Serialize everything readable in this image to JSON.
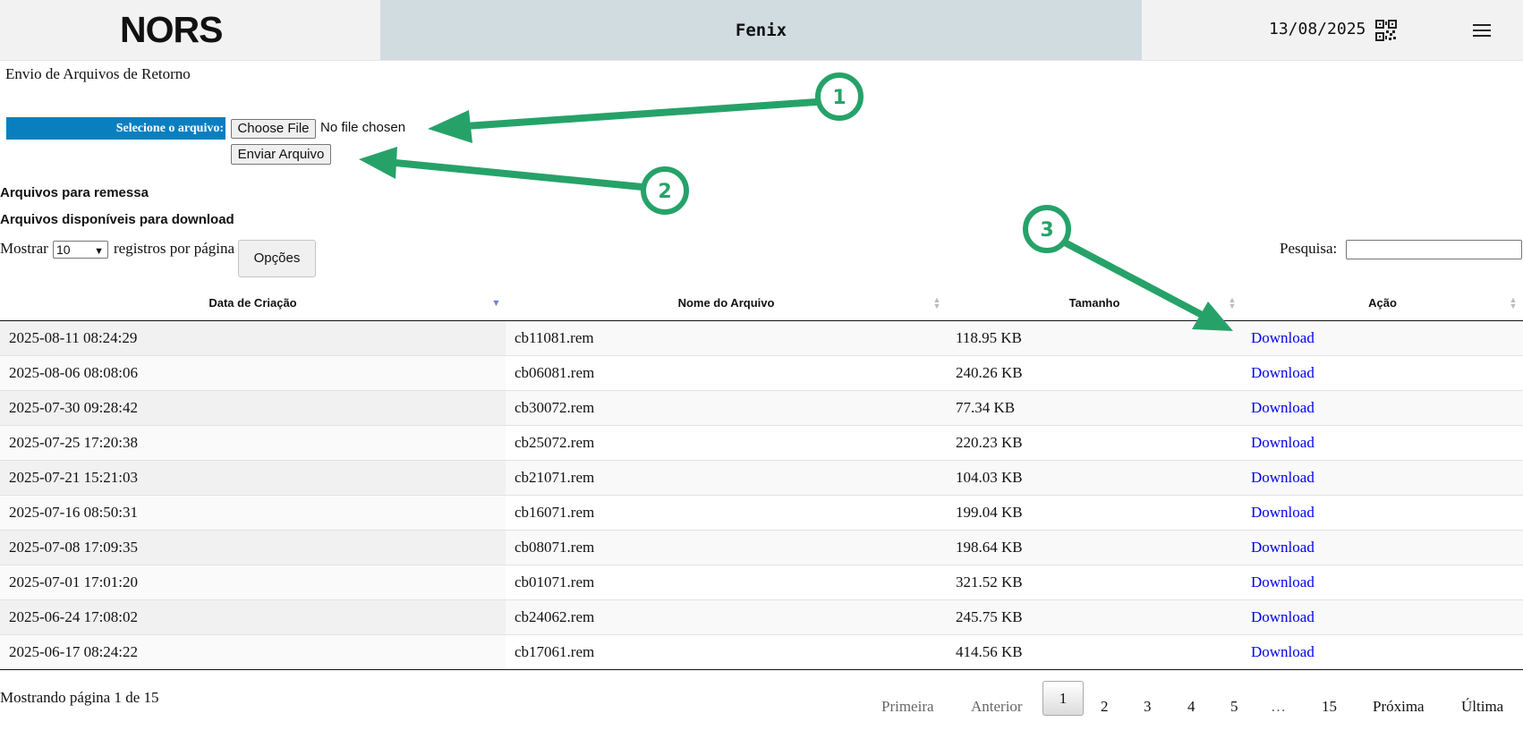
{
  "header": {
    "logo": "NORS",
    "app_title": "Fenix",
    "date": "13/08/2025",
    "qr_icon": "qr-code-icon",
    "menu_icon": "hamburger-menu-icon"
  },
  "page": {
    "heading": "Envio de Arquivos de Retorno"
  },
  "upload": {
    "label": "Selecione o arquivo:",
    "choose_button": "Choose File",
    "no_file": "No file chosen",
    "send_button": "Enviar Arquivo"
  },
  "sections": {
    "remessa": "Arquivos para remessa",
    "download": "Arquivos disponíveis para download"
  },
  "controls": {
    "show_prefix": "Mostrar",
    "page_size": "10",
    "show_suffix": "registros por página",
    "options_button": "Opções",
    "search_label": "Pesquisa:",
    "search_value": ""
  },
  "table": {
    "headers": [
      "Data de Criação",
      "Nome do Arquivo",
      "Tamanho",
      "Ação"
    ],
    "rows": [
      {
        "date": "2025-08-11 08:24:29",
        "name": "cb11081.rem",
        "size": "118.95 KB",
        "action": "Download"
      },
      {
        "date": "2025-08-06 08:08:06",
        "name": "cb06081.rem",
        "size": "240.26 KB",
        "action": "Download"
      },
      {
        "date": "2025-07-30 09:28:42",
        "name": "cb30072.rem",
        "size": "77.34 KB",
        "action": "Download"
      },
      {
        "date": "2025-07-25 17:20:38",
        "name": "cb25072.rem",
        "size": "220.23 KB",
        "action": "Download"
      },
      {
        "date": "2025-07-21 15:21:03",
        "name": "cb21071.rem",
        "size": "104.03 KB",
        "action": "Download"
      },
      {
        "date": "2025-07-16 08:50:31",
        "name": "cb16071.rem",
        "size": "199.04 KB",
        "action": "Download"
      },
      {
        "date": "2025-07-08 17:09:35",
        "name": "cb08071.rem",
        "size": "198.64 KB",
        "action": "Download"
      },
      {
        "date": "2025-07-01 17:01:20",
        "name": "cb01071.rem",
        "size": "321.52 KB",
        "action": "Download"
      },
      {
        "date": "2025-06-24 17:08:02",
        "name": "cb24062.rem",
        "size": "245.75 KB",
        "action": "Download"
      },
      {
        "date": "2025-06-17 08:24:22",
        "name": "cb17061.rem",
        "size": "414.56 KB",
        "action": "Download"
      }
    ]
  },
  "pagination": {
    "info": "Mostrando página 1 de 15",
    "first": "Primeira",
    "previous": "Anterior",
    "current": "1",
    "pages": [
      "2",
      "3",
      "4",
      "5"
    ],
    "ellipsis": "…",
    "last_page": "15",
    "next": "Próxima",
    "last": "Última"
  },
  "annotations": {
    "color": "#26a269",
    "markers": [
      "1",
      "2",
      "3"
    ]
  }
}
